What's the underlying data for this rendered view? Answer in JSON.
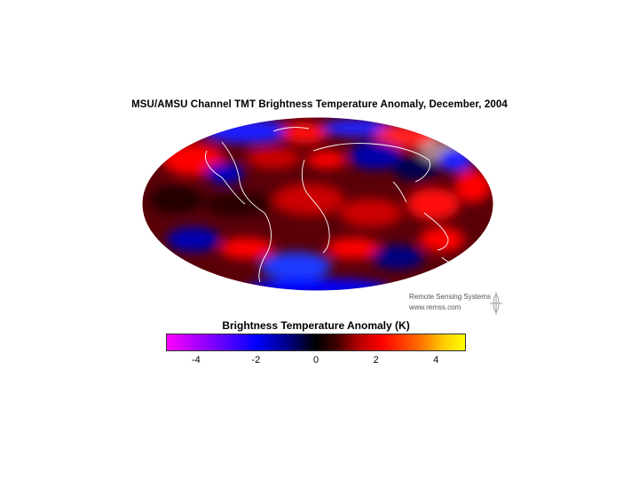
{
  "figure": {
    "title": "MSU/AMSU Channel TMT Brightness Temperature Anomaly, December, 2004"
  },
  "credit": {
    "line1": "Remote Sensing Systems",
    "line2": "www.remss.com"
  },
  "colorbar": {
    "title": "Brightness Temperature Anomaly (K)",
    "range": [
      -5,
      5
    ],
    "ticks": [
      {
        "value": -4,
        "label": "-4"
      },
      {
        "value": -2,
        "label": "-2"
      },
      {
        "value": 0,
        "label": "0"
      },
      {
        "value": 2,
        "label": "2"
      },
      {
        "value": 4,
        "label": "4"
      }
    ]
  },
  "colors": {
    "negative": "#0000ff",
    "neutral": "#000000",
    "positive": "#ff0000",
    "coastline": "#ffffff"
  }
}
